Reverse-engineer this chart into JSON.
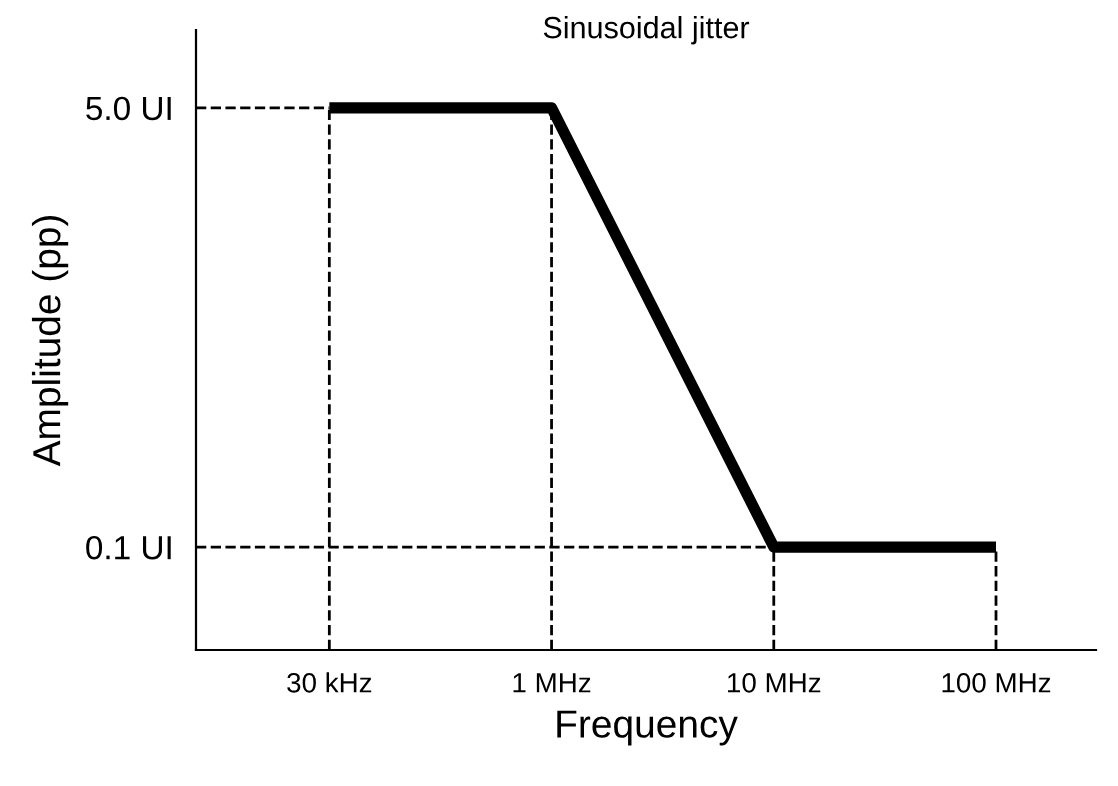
{
  "chart_data": {
    "type": "line",
    "title": "Sinusoidal jitter",
    "xlabel": "Frequency",
    "ylabel": "Amplitude (pp)",
    "log": "y",
    "categories": [
      "30 kHz",
      "1 MHz",
      "10 MHz",
      "100 MHz"
    ],
    "series": [
      {
        "color": "#000000",
        "values": [
          5.0,
          5.0,
          0.1,
          0.1
        ]
      }
    ],
    "ylim": [
      0.04,
      10
    ],
    "yticks": [
      {
        "value": 0.1,
        "label": "0.1 UI"
      },
      {
        "value": 5.0,
        "label": "5.0 UI"
      }
    ],
    "ref_lines": [
      {
        "axis": "x",
        "value": "30 kHz",
        "line_style": "dashed"
      },
      {
        "axis": "x",
        "value": "1 MHz",
        "line_style": "dashed"
      },
      {
        "axis": "x",
        "value": "10 MHz",
        "line_style": "dashed"
      },
      {
        "axis": "x",
        "value": "100 MHz",
        "line_style": "dashed"
      },
      {
        "axis": "y",
        "value": 5.0,
        "line_style": "dashed"
      },
      {
        "axis": "y",
        "value": 0.1,
        "line_style": "dashed"
      }
    ],
    "grid": false,
    "legend": false,
    "marker": "none",
    "line_style": "solid"
  }
}
